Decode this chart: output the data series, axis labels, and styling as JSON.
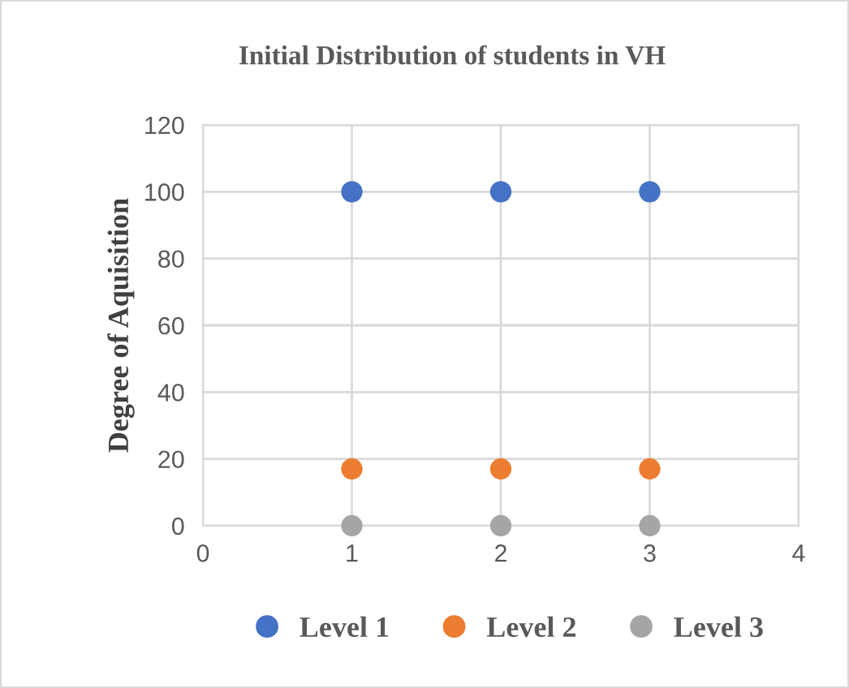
{
  "chart_data": {
    "type": "scatter",
    "title": "Initial Distribution of students in VH",
    "ylabel": "Degree of Aquisition",
    "x": [
      1,
      2,
      3
    ],
    "series": [
      {
        "name": "Level 1",
        "color": "#4472c4",
        "values": [
          100,
          100,
          100
        ]
      },
      {
        "name": "Level 2",
        "color": "#ed7d31",
        "values": [
          17,
          17,
          17
        ]
      },
      {
        "name": "Level 3",
        "color": "#a5a5a5",
        "values": [
          0,
          0,
          0
        ]
      }
    ],
    "xlim": [
      0,
      4
    ],
    "xticks": [
      0,
      1,
      2,
      3,
      4
    ],
    "ylim": [
      0,
      120
    ],
    "yticks": [
      0,
      20,
      40,
      60,
      80,
      100,
      120
    ],
    "grid": true,
    "legend": "bottom",
    "marker": "circle"
  }
}
